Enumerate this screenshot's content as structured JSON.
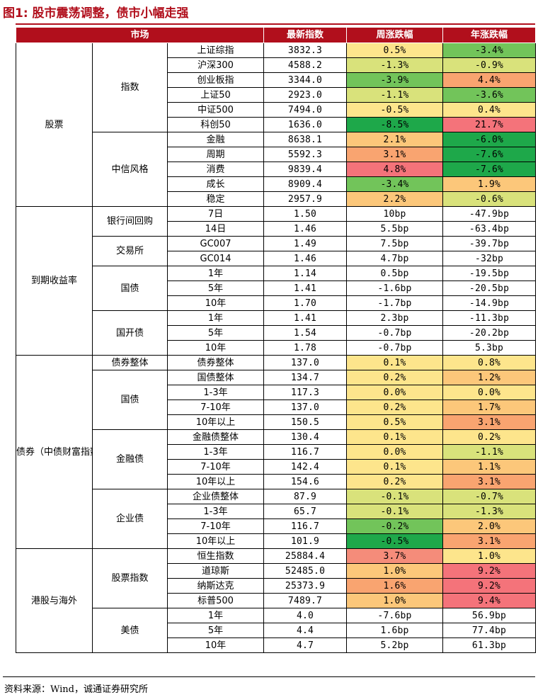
{
  "figure_title": "图1:  股市震荡调整，债市小幅走强",
  "source": "资料来源：Wind，诚通证券研究所",
  "colors": {
    "header_bg": "#b10f1c",
    "title_red": "#b10f1c",
    "dark_green": "#1ea84a",
    "green": "#72c45a",
    "light_green": "#a9d86a",
    "yellow_green": "#d9e27b",
    "yellow": "#fde58c",
    "light_orange": "#fcc77a",
    "orange": "#f9a470",
    "salmon": "#f58c7a",
    "red": "#f4737a"
  },
  "headers": [
    "市场",
    "最新指数",
    "周涨跌幅",
    "年涨跌幅"
  ],
  "rows": [
    {
      "g1": "股票",
      "g1span": 11,
      "g2": "指数",
      "g2span": 6,
      "name": "上证综指",
      "idx": "3832.3",
      "wk": "0.5%",
      "wc": "yellow",
      "yr": "-3.4%",
      "yc": "green"
    },
    {
      "name": "沪深300",
      "idx": "4588.2",
      "wk": "-1.3%",
      "wc": "yellow_green",
      "yr": "-0.9%",
      "yc": "yellow_green"
    },
    {
      "name": "创业板指",
      "idx": "3344.0",
      "wk": "-3.9%",
      "wc": "green",
      "yr": "4.4%",
      "yc": "orange"
    },
    {
      "name": "上证50",
      "idx": "2923.0",
      "wk": "-1.1%",
      "wc": "yellow_green",
      "yr": "-3.6%",
      "yc": "green"
    },
    {
      "name": "中证500",
      "idx": "7494.0",
      "wk": "-0.5%",
      "wc": "yellow",
      "yr": "0.4%",
      "yc": "yellow"
    },
    {
      "name": "科创50",
      "idx": "1636.0",
      "wk": "-8.5%",
      "wc": "dark_green",
      "yr": "21.7%",
      "yc": "red"
    },
    {
      "g2": "中信风格",
      "g2span": 5,
      "name": "金融",
      "idx": "8638.1",
      "wk": "2.1%",
      "wc": "light_orange",
      "yr": "-6.0%",
      "yc": "dark_green"
    },
    {
      "name": "周期",
      "idx": "5592.3",
      "wk": "3.1%",
      "wc": "orange",
      "yr": "-7.6%",
      "yc": "dark_green"
    },
    {
      "name": "消费",
      "idx": "9839.4",
      "wk": "4.8%",
      "wc": "red",
      "yr": "-7.6%",
      "yc": "dark_green"
    },
    {
      "name": "成长",
      "idx": "8909.4",
      "wk": "-3.4%",
      "wc": "green",
      "yr": "1.9%",
      "yc": "light_orange"
    },
    {
      "name": "稳定",
      "idx": "2957.9",
      "wk": "2.2%",
      "wc": "light_orange",
      "yr": "-0.6%",
      "yc": "yellow_green"
    },
    {
      "g1": "到期收益率",
      "g1span": 10,
      "g2": "银行间回购",
      "g2span": 2,
      "name": "7日",
      "idx": "1.50",
      "wk": "10bp",
      "wc": "",
      "yr": "-47.9bp",
      "yc": ""
    },
    {
      "name": "14日",
      "idx": "1.46",
      "wk": "5.5bp",
      "wc": "",
      "yr": "-63.4bp",
      "yc": ""
    },
    {
      "g2": "交易所",
      "g2span": 2,
      "name": "GC007",
      "idx": "1.49",
      "wk": "7.5bp",
      "wc": "",
      "yr": "-39.7bp",
      "yc": ""
    },
    {
      "name": "GC014",
      "idx": "1.46",
      "wk": "4.7bp",
      "wc": "",
      "yr": "-32bp",
      "yc": ""
    },
    {
      "g2": "国债",
      "g2span": 3,
      "name": "1年",
      "idx": "1.14",
      "wk": "0.5bp",
      "wc": "",
      "yr": "-19.5bp",
      "yc": ""
    },
    {
      "name": "5年",
      "idx": "1.41",
      "wk": "-1.6bp",
      "wc": "",
      "yr": "-20.5bp",
      "yc": ""
    },
    {
      "name": "10年",
      "idx": "1.70",
      "wk": "-1.7bp",
      "wc": "",
      "yr": "-14.9bp",
      "yc": ""
    },
    {
      "g2": "国开债",
      "g2span": 3,
      "name": "1年",
      "idx": "1.41",
      "wk": "2.3bp",
      "wc": "",
      "yr": "-11.3bp",
      "yc": ""
    },
    {
      "name": "5年",
      "idx": "1.54",
      "wk": "-0.7bp",
      "wc": "",
      "yr": "-20.2bp",
      "yc": ""
    },
    {
      "name": "10年",
      "idx": "1.78",
      "wk": "-0.7bp",
      "wc": "",
      "yr": "5.3bp",
      "yc": ""
    },
    {
      "g1": "债券（中债财富指数）",
      "g1span": 13,
      "g2": "债券整体",
      "g2span": 1,
      "name": "债券整体",
      "idx": "137.0",
      "wk": "0.1%",
      "wc": "yellow",
      "yr": "0.8%",
      "yc": "yellow"
    },
    {
      "g2": "国债",
      "g2span": 4,
      "name": "国债整体",
      "idx": "134.7",
      "wk": "0.2%",
      "wc": "yellow",
      "yr": "1.2%",
      "yc": "light_orange"
    },
    {
      "name": "1-3年",
      "idx": "117.3",
      "wk": "0.0%",
      "wc": "yellow",
      "yr": "0.0%",
      "yc": "yellow"
    },
    {
      "name": "7-10年",
      "idx": "137.0",
      "wk": "0.2%",
      "wc": "yellow",
      "yr": "1.7%",
      "yc": "light_orange"
    },
    {
      "name": "10年以上",
      "idx": "150.5",
      "wk": "0.5%",
      "wc": "yellow",
      "yr": "3.1%",
      "yc": "orange"
    },
    {
      "g2": "金融债",
      "g2span": 4,
      "name": "金融债整体",
      "idx": "130.4",
      "wk": "0.1%",
      "wc": "yellow",
      "yr": "0.2%",
      "yc": "yellow"
    },
    {
      "name": "1-3年",
      "idx": "116.7",
      "wk": "0.0%",
      "wc": "yellow",
      "yr": "-1.1%",
      "yc": "yellow_green"
    },
    {
      "name": "7-10年",
      "idx": "142.4",
      "wk": "0.1%",
      "wc": "yellow",
      "yr": "1.1%",
      "yc": "light_orange"
    },
    {
      "name": "10年以上",
      "idx": "154.6",
      "wk": "0.2%",
      "wc": "yellow",
      "yr": "3.1%",
      "yc": "orange"
    },
    {
      "g2": "企业债",
      "g2span": 4,
      "name": "企业债整体",
      "idx": "87.9",
      "wk": "-0.1%",
      "wc": "yellow_green",
      "yr": "-0.7%",
      "yc": "yellow_green"
    },
    {
      "name": "1-3年",
      "idx": "65.7",
      "wk": "-0.1%",
      "wc": "yellow_green",
      "yr": "-1.3%",
      "yc": "yellow_green"
    },
    {
      "name": "7-10年",
      "idx": "116.7",
      "wk": "-0.2%",
      "wc": "green",
      "yr": "2.0%",
      "yc": "light_orange"
    },
    {
      "name": "10年以上",
      "idx": "101.9",
      "wk": "-0.5%",
      "wc": "dark_green",
      "yr": "3.1%",
      "yc": "orange"
    },
    {
      "g1": "港股与海外",
      "g1span": 7,
      "g2": "股票指数",
      "g2span": 4,
      "name": "恒生指数",
      "idx": "25884.4",
      "wk": "3.7%",
      "wc": "salmon",
      "yr": "1.0%",
      "yc": "yellow"
    },
    {
      "name": "道琼斯",
      "idx": "52485.0",
      "wk": "1.0%",
      "wc": "light_orange",
      "yr": "9.2%",
      "yc": "red"
    },
    {
      "name": "纳斯达克",
      "idx": "25373.9",
      "wk": "1.6%",
      "wc": "orange",
      "yr": "9.2%",
      "yc": "red"
    },
    {
      "name": "标普500",
      "idx": "7489.7",
      "wk": "1.0%",
      "wc": "light_orange",
      "yr": "9.4%",
      "yc": "red"
    },
    {
      "g2": "美债",
      "g2span": 3,
      "name": "1年",
      "idx": "4.0",
      "wk": "-7.6bp",
      "wc": "",
      "yr": "56.9bp",
      "yc": ""
    },
    {
      "name": "5年",
      "idx": "4.4",
      "wk": "1.6bp",
      "wc": "",
      "yr": "77.4bp",
      "yc": ""
    },
    {
      "name": "10年",
      "idx": "4.7",
      "wk": "5.2bp",
      "wc": "",
      "yr": "61.3bp",
      "yc": ""
    }
  ]
}
